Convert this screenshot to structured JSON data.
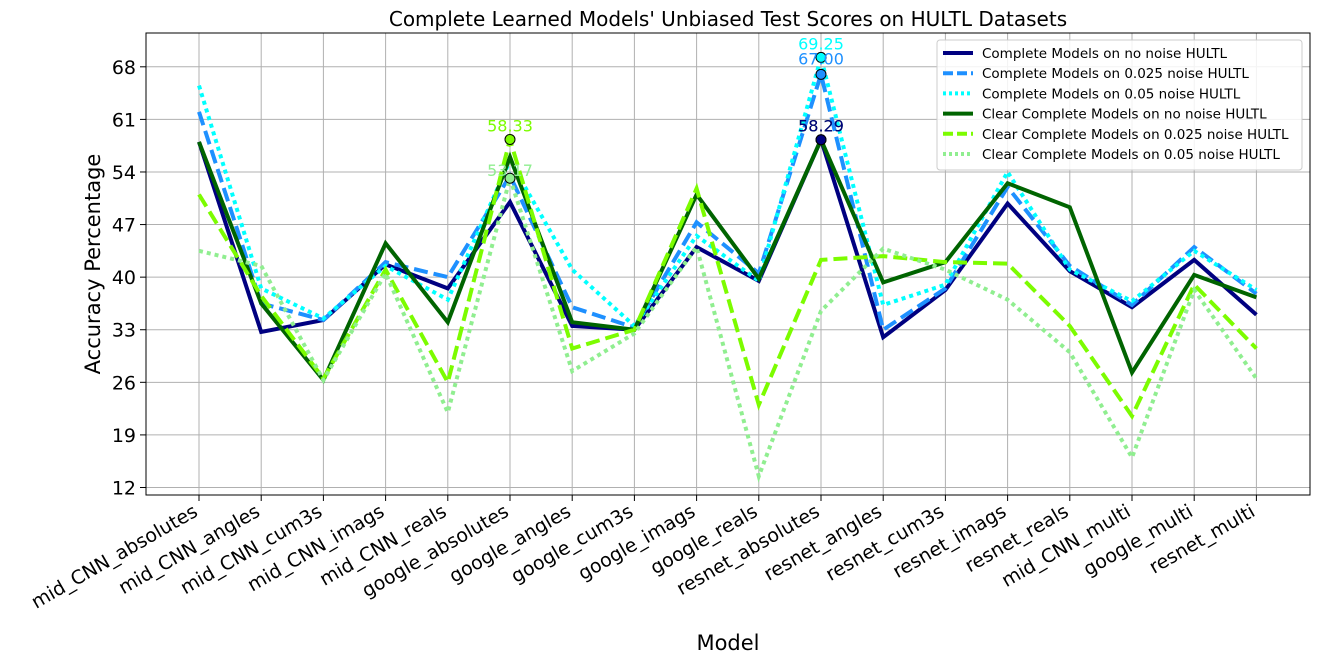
{
  "chart_data": {
    "type": "line",
    "title": "Complete Learned Models' Unbiased Test Scores on HULTL Datasets",
    "xlabel": "Model",
    "ylabel": "Accuracy Percentage",
    "ylim": [
      11,
      72.5
    ],
    "yticks": [
      12,
      19,
      26,
      33,
      40,
      47,
      54,
      61,
      68
    ],
    "grid": true,
    "legend_position": "top-right",
    "categories": [
      "mid_CNN_absolutes",
      "mid_CNN_angles",
      "mid_CNN_cum3s",
      "mid_CNN_imags",
      "mid_CNN_reals",
      "google_absolutes",
      "google_angles",
      "google_cum3s",
      "google_imags",
      "google_reals",
      "resnet_absolutes",
      "resnet_angles",
      "resnet_cum3s",
      "resnet_imags",
      "resnet_reals",
      "mid_CNN_multi",
      "google_multi",
      "resnet_multi"
    ],
    "series": [
      {
        "name": "Complete Models on no noise HULTL",
        "color": "#000080",
        "style": "solid",
        "values": [
          58.0,
          32.7,
          34.3,
          41.7,
          38.5,
          50.0,
          33.5,
          33.0,
          44.0,
          39.5,
          58.3,
          32.0,
          38.3,
          49.8,
          40.8,
          36.0,
          42.3,
          35.0
        ]
      },
      {
        "name": "Complete Models on 0.025 noise HULTL",
        "color": "#1e90ff",
        "style": "dashed",
        "values": [
          62.0,
          36.5,
          34.3,
          42.0,
          40.0,
          53.5,
          36.0,
          33.3,
          47.3,
          40.5,
          67.0,
          33.0,
          38.5,
          52.0,
          41.5,
          36.3,
          44.0,
          37.8
        ]
      },
      {
        "name": "Complete Models on 0.05 noise HULTL",
        "color": "#00ffff",
        "style": "dotted",
        "values": [
          65.5,
          38.5,
          34.5,
          41.5,
          37.0,
          55.5,
          41.0,
          33.5,
          45.5,
          39.5,
          69.25,
          36.3,
          39.0,
          54.0,
          41.0,
          36.8,
          43.5,
          38.3
        ]
      },
      {
        "name": "Clear Complete Models on no noise HULTL",
        "color": "#006400",
        "style": "solid",
        "values": [
          58.0,
          36.5,
          26.3,
          44.5,
          34.0,
          56.0,
          34.0,
          33.0,
          51.0,
          39.8,
          58.29,
          39.3,
          42.0,
          52.5,
          49.3,
          27.3,
          40.3,
          37.3
        ]
      },
      {
        "name": "Clear Complete Models on 0.025 noise HULTL",
        "color": "#7cfc00",
        "style": "dashed",
        "values": [
          51.0,
          37.5,
          26.5,
          41.0,
          26.0,
          58.33,
          30.5,
          33.0,
          51.8,
          23.0,
          42.3,
          42.8,
          42.0,
          41.8,
          33.5,
          21.5,
          39.0,
          30.5
        ]
      },
      {
        "name": "Clear Complete Models on 0.05 noise HULTL",
        "color": "#90ee90",
        "style": "dotted",
        "values": [
          43.5,
          41.5,
          26.3,
          40.5,
          22.0,
          53.17,
          27.5,
          32.5,
          44.0,
          13.5,
          35.5,
          43.8,
          41.0,
          37.0,
          30.0,
          16.0,
          38.3,
          26.5
        ]
      }
    ],
    "annotations": [
      {
        "text": "69.25",
        "category": "resnet_absolutes",
        "value": 69.25,
        "color": "#00ffff"
      },
      {
        "text": "67.00",
        "category": "resnet_absolutes",
        "value": 67.0,
        "color": "#1e90ff"
      },
      {
        "text": "58.29",
        "category": "resnet_absolutes",
        "value": 58.29,
        "color": "#006400"
      },
      {
        "text": "58.29",
        "category": "resnet_absolutes",
        "value": 58.29,
        "color": "#000080"
      },
      {
        "text": "58.33",
        "category": "google_absolutes",
        "value": 58.33,
        "color": "#7cfc00"
      },
      {
        "text": "53.17",
        "category": "google_absolutes",
        "value": 53.17,
        "color": "#90ee90"
      }
    ]
  }
}
